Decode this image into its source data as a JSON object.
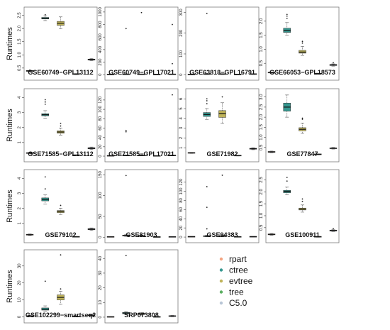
{
  "methods": [
    {
      "name": "rpart",
      "color": "#f4a582"
    },
    {
      "name": "ctree",
      "color": "#35978f"
    },
    {
      "name": "evtree",
      "color": "#bfb35a"
    },
    {
      "name": "tree",
      "color": "#5aae61"
    },
    {
      "name": "C5.0",
      "color": "#b8c6d6"
    }
  ],
  "chart_data": [
    {
      "type": "box",
      "title": "GSE60749−GPL13112",
      "ylabel": "Runtimes",
      "yticks": [
        0.5,
        1.0,
        1.5,
        2.0,
        2.5
      ],
      "yticklabels": [
        "0.5",
        "1.0",
        "1.5",
        "2.0",
        "2.5"
      ],
      "ylim": [
        0.2,
        2.65
      ],
      "boxes": [
        {
          "method": "rpart",
          "q1": 0.38,
          "median": 0.39,
          "q3": 0.4,
          "lo": 0.37,
          "hi": 0.41,
          "outliers": [
            0.36,
            0.42
          ]
        },
        {
          "method": "ctree",
          "q1": 2.36,
          "median": 2.39,
          "q3": 2.42,
          "lo": 2.3,
          "hi": 2.47,
          "outliers": [
            2.52
          ]
        },
        {
          "method": "evtree",
          "q1": 2.12,
          "median": 2.2,
          "q3": 2.27,
          "lo": 2.0,
          "hi": 2.44,
          "outliers": []
        },
        {
          "method": "tree",
          "q1": 0.26,
          "median": 0.27,
          "q3": 0.28,
          "lo": 0.25,
          "hi": 0.29,
          "outliers": []
        },
        {
          "method": "C5.0",
          "q1": 0.8,
          "median": 0.82,
          "q3": 0.84,
          "lo": 0.78,
          "hi": 0.86,
          "outliers": []
        }
      ]
    },
    {
      "type": "box",
      "title": "GSE60749−GPL17021",
      "ylabel": "",
      "yticks": [
        0,
        200,
        400,
        600,
        800,
        1000
      ],
      "yticklabels": [
        "0",
        "200",
        "400",
        "600",
        "800",
        "1000"
      ],
      "ylim": [
        -20,
        1010
      ],
      "boxes": [
        {
          "method": "rpart",
          "q1": 2,
          "median": 3,
          "q3": 4,
          "lo": 1,
          "hi": 5,
          "outliers": []
        },
        {
          "method": "ctree",
          "q1": 4,
          "median": 6,
          "q3": 8,
          "lo": 2,
          "hi": 10,
          "outliers": [
            735
          ]
        },
        {
          "method": "evtree",
          "q1": 4,
          "median": 6,
          "q3": 8,
          "lo": 2,
          "hi": 10,
          "outliers": [
            990
          ]
        },
        {
          "method": "tree",
          "q1": 2,
          "median": 3,
          "q3": 4,
          "lo": 1,
          "hi": 5,
          "outliers": []
        },
        {
          "method": "C5.0",
          "q1": 4,
          "median": 6,
          "q3": 8,
          "lo": 2,
          "hi": 10,
          "outliers": [
            800,
            175
          ]
        }
      ]
    },
    {
      "type": "box",
      "title": "GSE63818−GPL16791",
      "ylabel": "",
      "yticks": [
        0,
        100,
        200,
        300
      ],
      "yticklabels": [
        "0",
        "100",
        "200",
        "300"
      ],
      "ylim": [
        -6,
        305
      ],
      "boxes": [
        {
          "method": "rpart",
          "q1": 0.5,
          "median": 1,
          "q3": 1.5,
          "lo": 0,
          "hi": 2,
          "outliers": []
        },
        {
          "method": "ctree",
          "q1": 2,
          "median": 3,
          "q3": 4,
          "lo": 1,
          "hi": 5,
          "outliers": [
            295
          ]
        },
        {
          "method": "evtree",
          "q1": 2,
          "median": 3,
          "q3": 4,
          "lo": 1,
          "hi": 5,
          "outliers": []
        },
        {
          "method": "tree",
          "q1": 0.5,
          "median": 1,
          "q3": 1.5,
          "lo": 0,
          "hi": 2,
          "outliers": []
        },
        {
          "method": "C5.0",
          "q1": 2,
          "median": 3,
          "q3": 4,
          "lo": 1,
          "hi": 5,
          "outliers": []
        }
      ]
    },
    {
      "type": "box",
      "title": "GSE66053−GPL18573",
      "ylabel": "",
      "yticks": [
        0.5,
        1.0,
        1.5,
        2.0
      ],
      "yticklabels": [
        "0.5",
        "1.0",
        "1.5",
        "2.0"
      ],
      "ylim": [
        0.05,
        2.35
      ],
      "boxes": [
        {
          "method": "rpart",
          "q1": 0.16,
          "median": 0.17,
          "q3": 0.18,
          "lo": 0.15,
          "hi": 0.19,
          "outliers": []
        },
        {
          "method": "ctree",
          "q1": 1.6,
          "median": 1.67,
          "q3": 1.75,
          "lo": 1.5,
          "hi": 1.95,
          "outliers": [
            2.1,
            2.18,
            2.24
          ]
        },
        {
          "method": "evtree",
          "q1": 0.86,
          "median": 0.9,
          "q3": 0.96,
          "lo": 0.78,
          "hi": 1.1,
          "outliers": [
            1.22,
            1.28
          ]
        },
        {
          "method": "tree",
          "q1": 0.12,
          "median": 0.13,
          "q3": 0.14,
          "lo": 0.11,
          "hi": 0.15,
          "outliers": []
        },
        {
          "method": "C5.0",
          "q1": 0.42,
          "median": 0.44,
          "q3": 0.46,
          "lo": 0.4,
          "hi": 0.48,
          "outliers": [
            0.52
          ]
        }
      ]
    },
    {
      "type": "box",
      "title": "GSE71585−GPL13112",
      "ylabel": "Runtimes",
      "yticks": [
        1,
        2,
        3,
        4
      ],
      "yticklabels": [
        "1",
        "2",
        "3",
        "4"
      ],
      "ylim": [
        0.0,
        4.3
      ],
      "boxes": [
        {
          "method": "rpart",
          "q1": 0.28,
          "median": 0.3,
          "q3": 0.32,
          "lo": 0.26,
          "hi": 0.34,
          "outliers": []
        },
        {
          "method": "ctree",
          "q1": 2.78,
          "median": 2.85,
          "q3": 2.92,
          "lo": 2.62,
          "hi": 3.12,
          "outliers": [
            3.55,
            3.7,
            3.85
          ]
        },
        {
          "method": "evtree",
          "q1": 1.62,
          "median": 1.7,
          "q3": 1.78,
          "lo": 1.5,
          "hi": 1.95,
          "outliers": [
            2.1,
            2.28
          ]
        },
        {
          "method": "tree",
          "q1": 0.15,
          "median": 0.16,
          "q3": 0.17,
          "lo": 0.14,
          "hi": 0.18,
          "outliers": []
        },
        {
          "method": "C5.0",
          "q1": 0.58,
          "median": 0.62,
          "q3": 0.66,
          "lo": 0.54,
          "hi": 0.7,
          "outliers": []
        }
      ]
    },
    {
      "type": "box",
      "title": "GSE71585−GPL17021",
      "ylabel": "",
      "yticks": [
        0,
        20,
        40,
        60,
        80,
        100,
        120
      ],
      "yticklabels": [
        "0",
        "20",
        "40",
        "60",
        "80",
        "100",
        "120"
      ],
      "ylim": [
        -3,
        135
      ],
      "boxes": [
        {
          "method": "rpart",
          "q1": 0.5,
          "median": 0.7,
          "q3": 1.0,
          "lo": 0.2,
          "hi": 1.3,
          "outliers": []
        },
        {
          "method": "ctree",
          "q1": 1.0,
          "median": 1.5,
          "q3": 2.0,
          "lo": 0.5,
          "hi": 2.5,
          "outliers": [
            52,
            55
          ]
        },
        {
          "method": "evtree",
          "q1": 1.0,
          "median": 1.5,
          "q3": 2.0,
          "lo": 0.5,
          "hi": 2.5,
          "outliers": []
        },
        {
          "method": "tree",
          "q1": 0.3,
          "median": 0.5,
          "q3": 0.7,
          "lo": 0.1,
          "hi": 0.9,
          "outliers": []
        },
        {
          "method": "C5.0",
          "q1": 1.0,
          "median": 1.5,
          "q3": 2.0,
          "lo": 0.5,
          "hi": 2.5,
          "outliers": [
            131
          ]
        }
      ]
    },
    {
      "type": "box",
      "title": "GSE71982",
      "ylabel": "",
      "yticks": [
        1,
        2,
        3,
        4,
        5,
        6
      ],
      "yticklabels": [
        "1",
        "2",
        "3",
        "4",
        "5",
        "6"
      ],
      "ylim": [
        0.0,
        6.6
      ],
      "boxes": [
        {
          "method": "rpart",
          "q1": 0.45,
          "median": 0.48,
          "q3": 0.5,
          "lo": 0.42,
          "hi": 0.53,
          "outliers": []
        },
        {
          "method": "ctree",
          "q1": 4.2,
          "median": 4.4,
          "q3": 4.6,
          "lo": 3.9,
          "hi": 5.0,
          "outliers": [
            5.5,
            5.8,
            6.0
          ]
        },
        {
          "method": "evtree",
          "q1": 4.1,
          "median": 4.5,
          "q3": 4.8,
          "lo": 3.5,
          "hi": 5.6,
          "outliers": [
            6.2
          ]
        },
        {
          "method": "tree",
          "q1": 0.18,
          "median": 0.2,
          "q3": 0.22,
          "lo": 0.16,
          "hi": 0.24,
          "outliers": []
        },
        {
          "method": "C5.0",
          "q1": 0.85,
          "median": 0.9,
          "q3": 0.95,
          "lo": 0.8,
          "hi": 1.0,
          "outliers": []
        }
      ]
    },
    {
      "type": "box",
      "title": "GSE77847",
      "ylabel": "",
      "yticks": [
        0.5,
        1.0,
        1.5,
        2.0,
        2.5,
        3.0
      ],
      "yticklabels": [
        "0.5",
        "1.0",
        "1.5",
        "2.0",
        "2.5",
        "3.0"
      ],
      "ylim": [
        0.0,
        3.2
      ],
      "boxes": [
        {
          "method": "rpart",
          "q1": 0.26,
          "median": 0.28,
          "q3": 0.3,
          "lo": 0.24,
          "hi": 0.32,
          "outliers": []
        },
        {
          "method": "ctree",
          "q1": 2.3,
          "median": 2.5,
          "q3": 2.7,
          "lo": 2.0,
          "hi": 3.1,
          "outliers": []
        },
        {
          "method": "evtree",
          "q1": 1.32,
          "median": 1.4,
          "q3": 1.48,
          "lo": 1.2,
          "hi": 1.7,
          "outliers": [
            1.9,
            1.95
          ]
        },
        {
          "method": "tree",
          "q1": 0.15,
          "median": 0.16,
          "q3": 0.17,
          "lo": 0.14,
          "hi": 0.18,
          "outliers": []
        },
        {
          "method": "C5.0",
          "q1": 0.44,
          "median": 0.46,
          "q3": 0.48,
          "lo": 0.42,
          "hi": 0.5,
          "outliers": []
        }
      ]
    },
    {
      "type": "box",
      "title": "GSE79102",
      "ylabel": "Runtimes",
      "yticks": [
        1,
        2,
        3,
        4
      ],
      "yticklabels": [
        "1",
        "2",
        "3",
        "4"
      ],
      "ylim": [
        0.0,
        4.3
      ],
      "boxes": [
        {
          "method": "rpart",
          "q1": 0.22,
          "median": 0.25,
          "q3": 0.28,
          "lo": 0.2,
          "hi": 0.3,
          "outliers": []
        },
        {
          "method": "ctree",
          "q1": 2.5,
          "median": 2.6,
          "q3": 2.7,
          "lo": 2.3,
          "hi": 2.9,
          "outliers": [
            3.3,
            4.1
          ]
        },
        {
          "method": "evtree",
          "q1": 1.72,
          "median": 1.8,
          "q3": 1.86,
          "lo": 1.6,
          "hi": 2.0,
          "outliers": [
            2.2
          ]
        },
        {
          "method": "tree",
          "q1": 0.1,
          "median": 0.11,
          "q3": 0.12,
          "lo": 0.09,
          "hi": 0.13,
          "outliers": []
        },
        {
          "method": "C5.0",
          "q1": 0.58,
          "median": 0.62,
          "q3": 0.66,
          "lo": 0.54,
          "hi": 0.7,
          "outliers": []
        }
      ]
    },
    {
      "type": "box",
      "title": "GSE81903",
      "ylabel": "",
      "yticks": [
        0,
        50,
        100,
        150
      ],
      "yticklabels": [
        "0",
        "50",
        "100",
        "150"
      ],
      "ylim": [
        -3,
        152
      ],
      "boxes": [
        {
          "method": "rpart",
          "q1": 0.5,
          "median": 0.8,
          "q3": 1.0,
          "lo": 0.2,
          "hi": 1.3,
          "outliers": []
        },
        {
          "method": "ctree",
          "q1": 3.0,
          "median": 4.0,
          "q3": 5.0,
          "lo": 2.0,
          "hi": 6.0,
          "outliers": [
            148
          ]
        },
        {
          "method": "evtree",
          "q1": 2.0,
          "median": 3.0,
          "q3": 4.0,
          "lo": 1.0,
          "hi": 5.0,
          "outliers": []
        },
        {
          "method": "tree",
          "q1": 0.3,
          "median": 0.5,
          "q3": 0.7,
          "lo": 0.1,
          "hi": 0.9,
          "outliers": []
        },
        {
          "method": "C5.0",
          "q1": 0.5,
          "median": 0.8,
          "q3": 1.0,
          "lo": 0.2,
          "hi": 1.3,
          "outliers": []
        }
      ]
    },
    {
      "type": "box",
      "title": "GSE94383",
      "ylabel": "",
      "yticks": [
        0,
        20,
        40,
        60,
        80,
        100,
        120
      ],
      "yticklabels": [
        "0",
        "20",
        "40",
        "60",
        "80",
        "100",
        "120"
      ],
      "ylim": [
        -3,
        138
      ],
      "boxes": [
        {
          "method": "rpart",
          "q1": 0.5,
          "median": 0.8,
          "q3": 1.0,
          "lo": 0.2,
          "hi": 1.3,
          "outliers": []
        },
        {
          "method": "ctree",
          "q1": 1.0,
          "median": 2.0,
          "q3": 3.0,
          "lo": 0.5,
          "hi": 4.0,
          "outliers": [
            110,
            65,
            18
          ]
        },
        {
          "method": "evtree",
          "q1": 1.0,
          "median": 2.0,
          "q3": 3.0,
          "lo": 0.5,
          "hi": 4.0,
          "outliers": [
            135
          ]
        },
        {
          "method": "tree",
          "q1": 0.3,
          "median": 0.5,
          "q3": 0.7,
          "lo": 0.1,
          "hi": 0.9,
          "outliers": []
        },
        {
          "method": "C5.0",
          "q1": 0.5,
          "median": 0.8,
          "q3": 1.0,
          "lo": 0.2,
          "hi": 1.3,
          "outliers": []
        }
      ]
    },
    {
      "type": "box",
      "title": "GSE100911",
      "ylabel": "",
      "yticks": [
        0.5,
        1.0,
        1.5,
        2.0,
        2.5
      ],
      "yticklabels": [
        "0.5",
        "1.0",
        "1.5",
        "2.0",
        "2.5"
      ],
      "ylim": [
        0.05,
        2.75
      ],
      "boxes": [
        {
          "method": "rpart",
          "q1": 0.2,
          "median": 0.22,
          "q3": 0.24,
          "lo": 0.18,
          "hi": 0.26,
          "outliers": []
        },
        {
          "method": "ctree",
          "q1": 1.96,
          "median": 2.02,
          "q3": 2.06,
          "lo": 1.88,
          "hi": 2.2,
          "outliers": [
            2.45,
            2.6
          ]
        },
        {
          "method": "evtree",
          "q1": 1.24,
          "median": 1.28,
          "q3": 1.32,
          "lo": 1.15,
          "hi": 1.45,
          "outliers": [
            1.6,
            1.7
          ]
        },
        {
          "method": "tree",
          "q1": 0.11,
          "median": 0.12,
          "q3": 0.13,
          "lo": 0.1,
          "hi": 0.14,
          "outliers": []
        },
        {
          "method": "C5.0",
          "q1": 0.36,
          "median": 0.38,
          "q3": 0.4,
          "lo": 0.34,
          "hi": 0.42,
          "outliers": [
            0.47
          ]
        }
      ]
    },
    {
      "type": "box",
      "title": "GSE102299−smartseq2",
      "ylabel": "Runtimes",
      "yticks": [
        0,
        10,
        20,
        30
      ],
      "yticklabels": [
        "0",
        "10",
        "20",
        "30"
      ],
      "ylim": [
        -1,
        37
      ],
      "boxes": [
        {
          "method": "rpart",
          "q1": 0.3,
          "median": 0.5,
          "q3": 0.7,
          "lo": 0.1,
          "hi": 0.9,
          "outliers": []
        },
        {
          "method": "ctree",
          "q1": 4.0,
          "median": 4.6,
          "q3": 5.3,
          "lo": 3.2,
          "hi": 6.5,
          "outliers": [
            21.0
          ]
        },
        {
          "method": "evtree",
          "q1": 10.0,
          "median": 11.5,
          "q3": 13.0,
          "lo": 7.5,
          "hi": 15.0,
          "outliers": [
            16.5,
            36.5
          ]
        },
        {
          "method": "tree",
          "q1": 0.2,
          "median": 0.3,
          "q3": 0.4,
          "lo": 0.1,
          "hi": 0.5,
          "outliers": []
        },
        {
          "method": "C5.0",
          "q1": 0.8,
          "median": 1.0,
          "q3": 1.2,
          "lo": 0.6,
          "hi": 1.4,
          "outliers": []
        }
      ]
    },
    {
      "type": "box",
      "title": "SRP073808",
      "ylabel": "",
      "yticks": [
        0,
        10,
        20,
        30,
        40
      ],
      "yticklabels": [
        "0",
        "10",
        "20",
        "30",
        "40"
      ],
      "ylim": [
        -1,
        43
      ],
      "boxes": [
        {
          "method": "rpart",
          "q1": 0.1,
          "median": 0.2,
          "q3": 0.3,
          "lo": 0.05,
          "hi": 0.4,
          "outliers": []
        },
        {
          "method": "ctree",
          "q1": 2.3,
          "median": 2.8,
          "q3": 3.3,
          "lo": 1.8,
          "hi": 3.8,
          "outliers": [
            42
          ]
        },
        {
          "method": "evtree",
          "q1": 1.8,
          "median": 2.2,
          "q3": 2.6,
          "lo": 1.4,
          "hi": 3.0,
          "outliers": []
        },
        {
          "method": "tree",
          "q1": 0.1,
          "median": 0.2,
          "q3": 0.3,
          "lo": 0.05,
          "hi": 0.4,
          "outliers": []
        },
        {
          "method": "C5.0",
          "q1": 0.5,
          "median": 0.8,
          "q3": 1.0,
          "lo": 0.3,
          "hi": 1.2,
          "outliers": []
        }
      ]
    }
  ]
}
